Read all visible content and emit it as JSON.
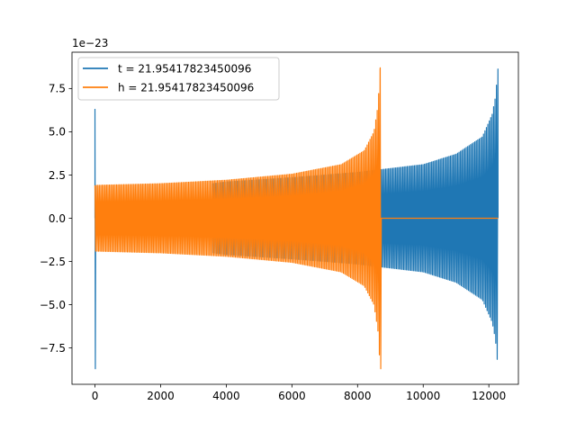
{
  "chart_data": {
    "type": "line",
    "title": "",
    "xlabel": "",
    "ylabel": "",
    "y_offset_label": "1e−23",
    "xlim": [
      -700,
      12900
    ],
    "ylim": [
      -9.6,
      9.6
    ],
    "grid": false,
    "legend_position": "upper-left",
    "x_ticks": [
      0,
      2000,
      4000,
      6000,
      8000,
      10000,
      12000
    ],
    "x_tick_labels": [
      "0",
      "2000",
      "4000",
      "6000",
      "8000",
      "10000",
      "12000"
    ],
    "y_ticks": [
      -7.5,
      -5.0,
      -2.5,
      0.0,
      2.5,
      5.0,
      7.5
    ],
    "y_tick_labels": [
      "−7.5",
      "−5.0",
      "−2.5",
      "0.0",
      "2.5",
      "5.0",
      "7.5"
    ],
    "series": [
      {
        "name": "t = 21.95417823450096",
        "color": "#1f77b4",
        "x_start": 0,
        "x_end": 12280,
        "chirp_start": 3590,
        "envelope_x": [
          3590,
          4000,
          6000,
          8000,
          10000,
          11000,
          11800,
          12100,
          12200,
          12280
        ],
        "envelope_y": [
          2.0,
          2.1,
          2.35,
          2.65,
          3.1,
          3.7,
          4.7,
          6.0,
          7.0,
          8.7
        ],
        "initial_spike": [
          6.3,
          -8.7
        ]
      },
      {
        "name": "h = 21.95417823450096",
        "color": "#ff7f0e",
        "x_start": 0,
        "x_end": 12280,
        "chirp_end": 8690,
        "envelope_x": [
          0,
          1000,
          2000,
          4000,
          6000,
          7500,
          8200,
          8500,
          8620,
          8690
        ],
        "envelope_y": [
          1.9,
          1.95,
          2.0,
          2.2,
          2.55,
          3.1,
          3.9,
          5.0,
          6.5,
          8.7
        ]
      }
    ]
  }
}
